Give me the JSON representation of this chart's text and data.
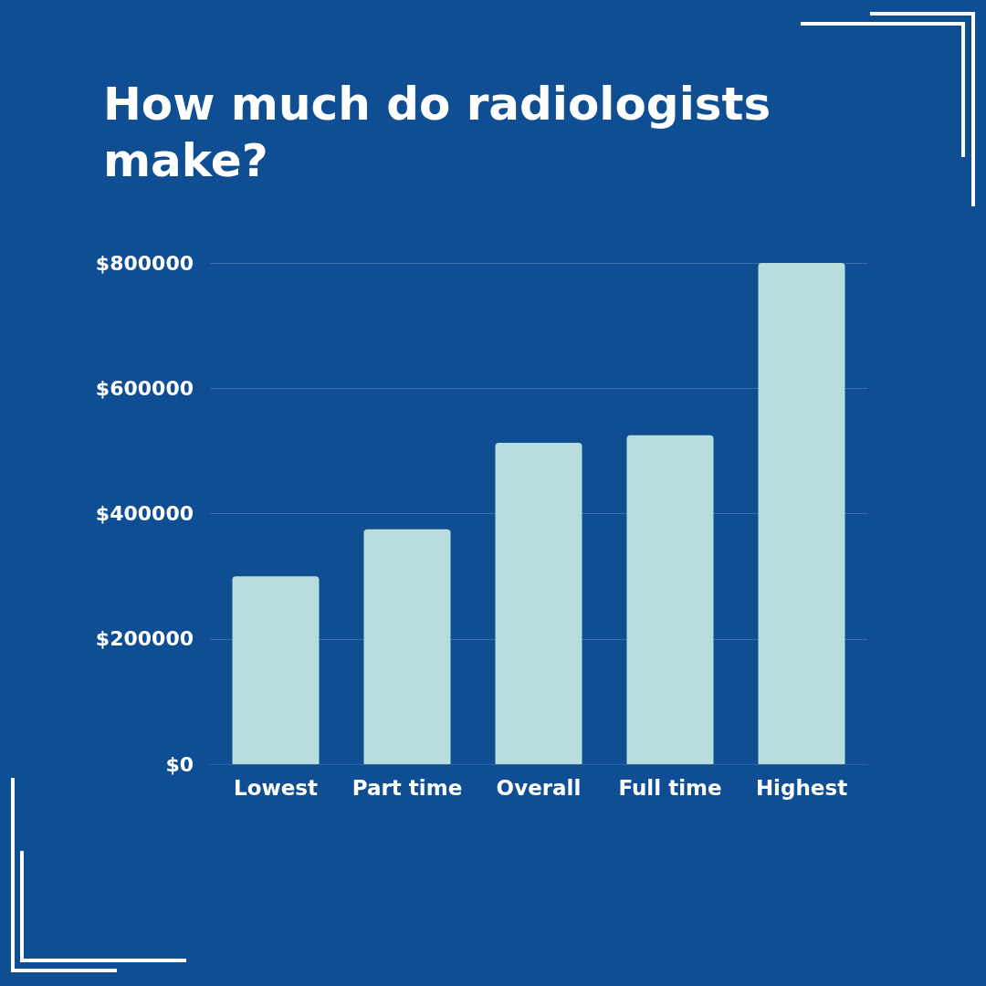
{
  "chart_data": {
    "type": "bar",
    "title": "How much do radiologists make?",
    "categories": [
      "Lowest",
      "Part time",
      "Overall",
      "Full time",
      "Highest"
    ],
    "values": [
      300000,
      375000,
      513000,
      525000,
      800000
    ],
    "color": "#b8dddc",
    "ylim": [
      0,
      800000
    ],
    "yticks": [
      {
        "value": 0,
        "label": "$0"
      },
      {
        "value": 200000,
        "label": "$200000"
      },
      {
        "value": 400000,
        "label": "$400000"
      },
      {
        "value": 600000,
        "label": "$600000"
      },
      {
        "value": 800000,
        "label": "$800000"
      }
    ],
    "grid": "y"
  }
}
